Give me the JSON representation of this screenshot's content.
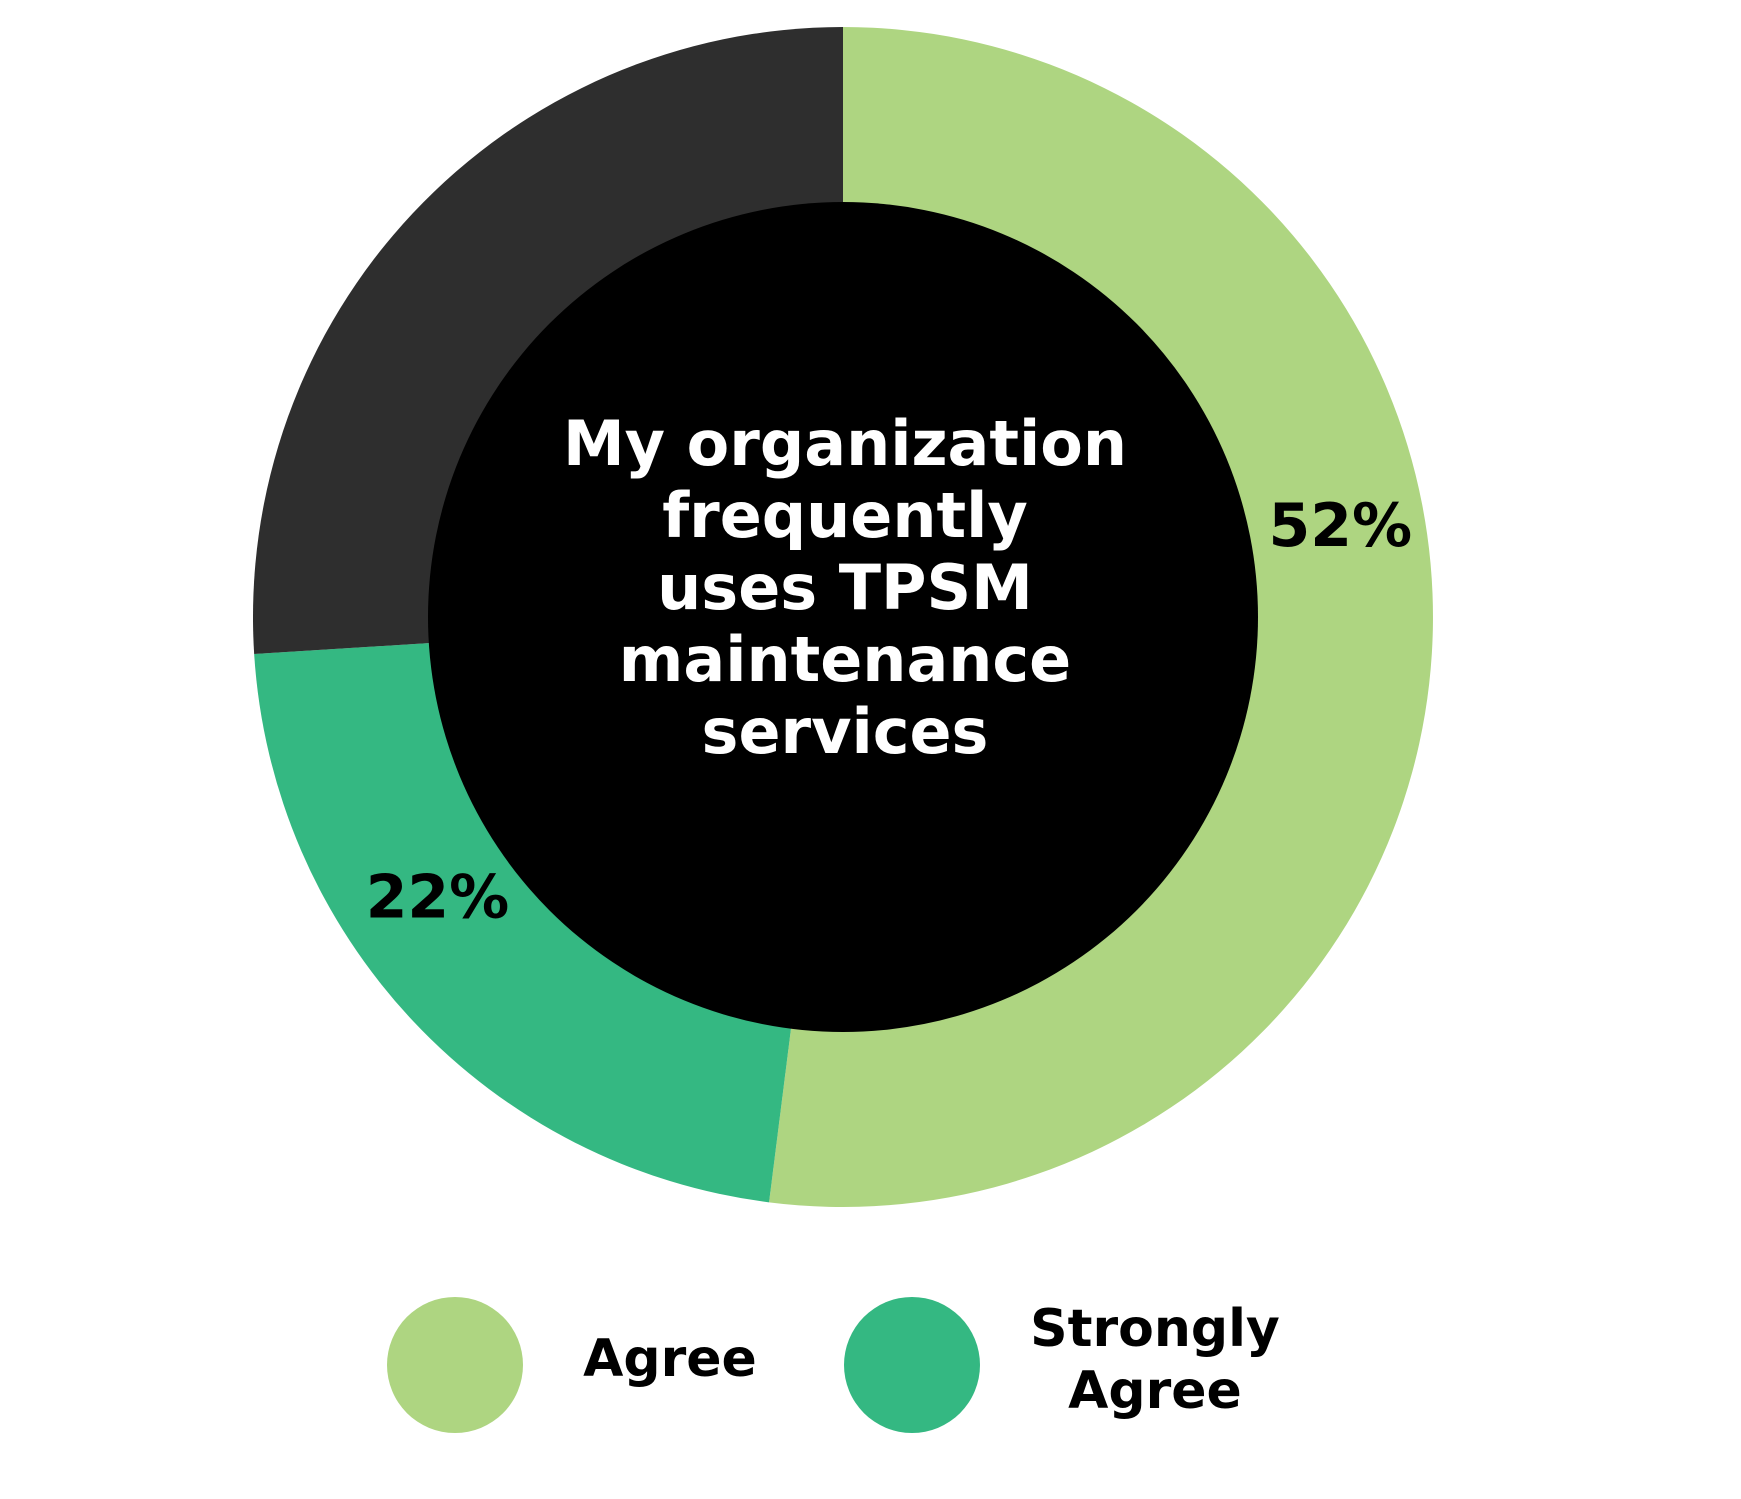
{
  "chart_data": {
    "type": "pie",
    "style": "donut",
    "title_lines": [
      "My organization",
      "frequently",
      "uses TPSM",
      "maintenance",
      "services"
    ],
    "slices": [
      {
        "label": "Agree",
        "value": 52,
        "color": "#aed581",
        "value_label": "52%"
      },
      {
        "label": "Strongly Agree",
        "value": 22,
        "color": "#34b882",
        "value_label": "22%"
      },
      {
        "label": "",
        "value": 26,
        "color": "#2e2e2e",
        "value_label": ""
      }
    ],
    "legend": {
      "placement": "bottom",
      "entries": [
        {
          "label_lines": [
            "Agree"
          ],
          "color": "#aed581"
        },
        {
          "label_lines": [
            "Strongly",
            "Agree"
          ],
          "color": "#34b882"
        }
      ]
    },
    "center_color": "#000000"
  }
}
